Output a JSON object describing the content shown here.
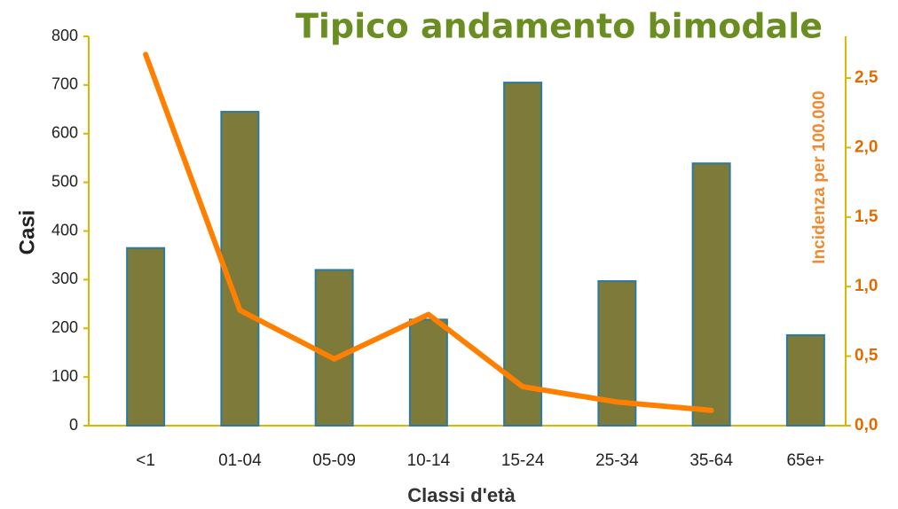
{
  "chart_data": {
    "type": "bar",
    "title": "Tipico andamento bimodale",
    "x_label": "Classi d'età",
    "y_label": "Casi",
    "y2_label": "Incidenza per 100.000",
    "categories": [
      "<1",
      "01-04",
      "05-09",
      "10-14",
      "15-24",
      "25-34",
      "35-64",
      "65e+"
    ],
    "series": [
      {
        "name": "Casi",
        "type": "bar",
        "color": "#7d7a3a",
        "values": [
          365,
          645,
          320,
          218,
          705,
          297,
          539,
          186
        ]
      },
      {
        "name": "Incidenza per 100.000",
        "type": "line",
        "axis": "y2",
        "color": "#ff8000",
        "values": [
          2.67,
          0.83,
          0.48,
          0.8,
          0.28,
          0.17,
          0.11,
          null
        ]
      }
    ],
    "ylim": [
      0,
      800
    ],
    "yticks": [
      0,
      100,
      200,
      300,
      400,
      500,
      600,
      700,
      800
    ],
    "y2lim": [
      0,
      2.8
    ],
    "y2ticks": [
      {
        "value": 0,
        "label": "0,0"
      },
      {
        "value": 0.5,
        "label": "0,5"
      },
      {
        "value": 1,
        "label": "1,0"
      },
      {
        "value": 1.5,
        "label": "1,5"
      },
      {
        "value": 2,
        "label": "2,0"
      },
      {
        "value": 2.5,
        "label": "2,5"
      }
    ]
  }
}
